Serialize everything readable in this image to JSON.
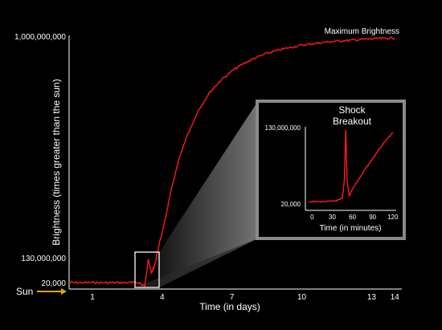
{
  "chart_data": [
    {
      "type": "line",
      "xlabel": "Time (in days)",
      "ylabel": "Brightness  (times greater than the sun)",
      "x_ticks": [
        1,
        4,
        7,
        10,
        13,
        14
      ],
      "y_ticks": [
        "20,000",
        "130,000,000",
        "1,000,000,000"
      ],
      "xlim": [
        0,
        14.3
      ],
      "y_scale": "log",
      "ylim": [
        20000,
        1000000000
      ],
      "annotations": {
        "sun": "Sun",
        "max": "Maximum Brightness"
      },
      "line_color": "#ff0000",
      "series": [
        {
          "x": [
            0,
            0.5,
            1,
            1.5,
            2,
            2.5,
            3,
            3.25,
            3.4,
            3.55,
            3.7,
            3.85,
            4,
            4.2,
            4.4,
            4.7,
            5,
            5.5,
            6,
            6.5,
            7,
            7.5,
            8,
            8.5,
            9,
            9.5,
            10,
            10.5,
            11,
            11.5,
            12,
            12.5,
            13,
            13.5,
            14
          ],
          "y": [
            20000,
            20000,
            20000,
            20000,
            20000,
            20000,
            20000,
            17000,
            55000,
            30000,
            48000,
            100000,
            180000,
            450000,
            1300000,
            4200000,
            11000000,
            36000000,
            85000000,
            150000000,
            230000000,
            320000000,
            410000000,
            500000000,
            580000000,
            650000000,
            720000000,
            770000000,
            820000000,
            860000000,
            890000000,
            920000000,
            950000000,
            970000000,
            990000000
          ]
        }
      ]
    },
    {
      "type": "line",
      "title": "Shock\nBreakout",
      "xlabel": "Time (in minutes)",
      "x_ticks": [
        0,
        30,
        60,
        90,
        120
      ],
      "y_ticks": [
        "20,000",
        "130,000,000"
      ],
      "xlim": [
        -10,
        125
      ],
      "ylim": [
        0,
        1
      ],
      "series": [
        {
          "x": [
            -5,
            5,
            15,
            25,
            35,
            40,
            45,
            48,
            50,
            52,
            55,
            60,
            70,
            80,
            90,
            100,
            110,
            120
          ],
          "y": [
            0.08,
            0.08,
            0.08,
            0.08,
            0.09,
            0.1,
            0.12,
            0.35,
            0.98,
            0.35,
            0.15,
            0.24,
            0.37,
            0.5,
            0.62,
            0.74,
            0.85,
            0.95
          ]
        }
      ]
    }
  ]
}
